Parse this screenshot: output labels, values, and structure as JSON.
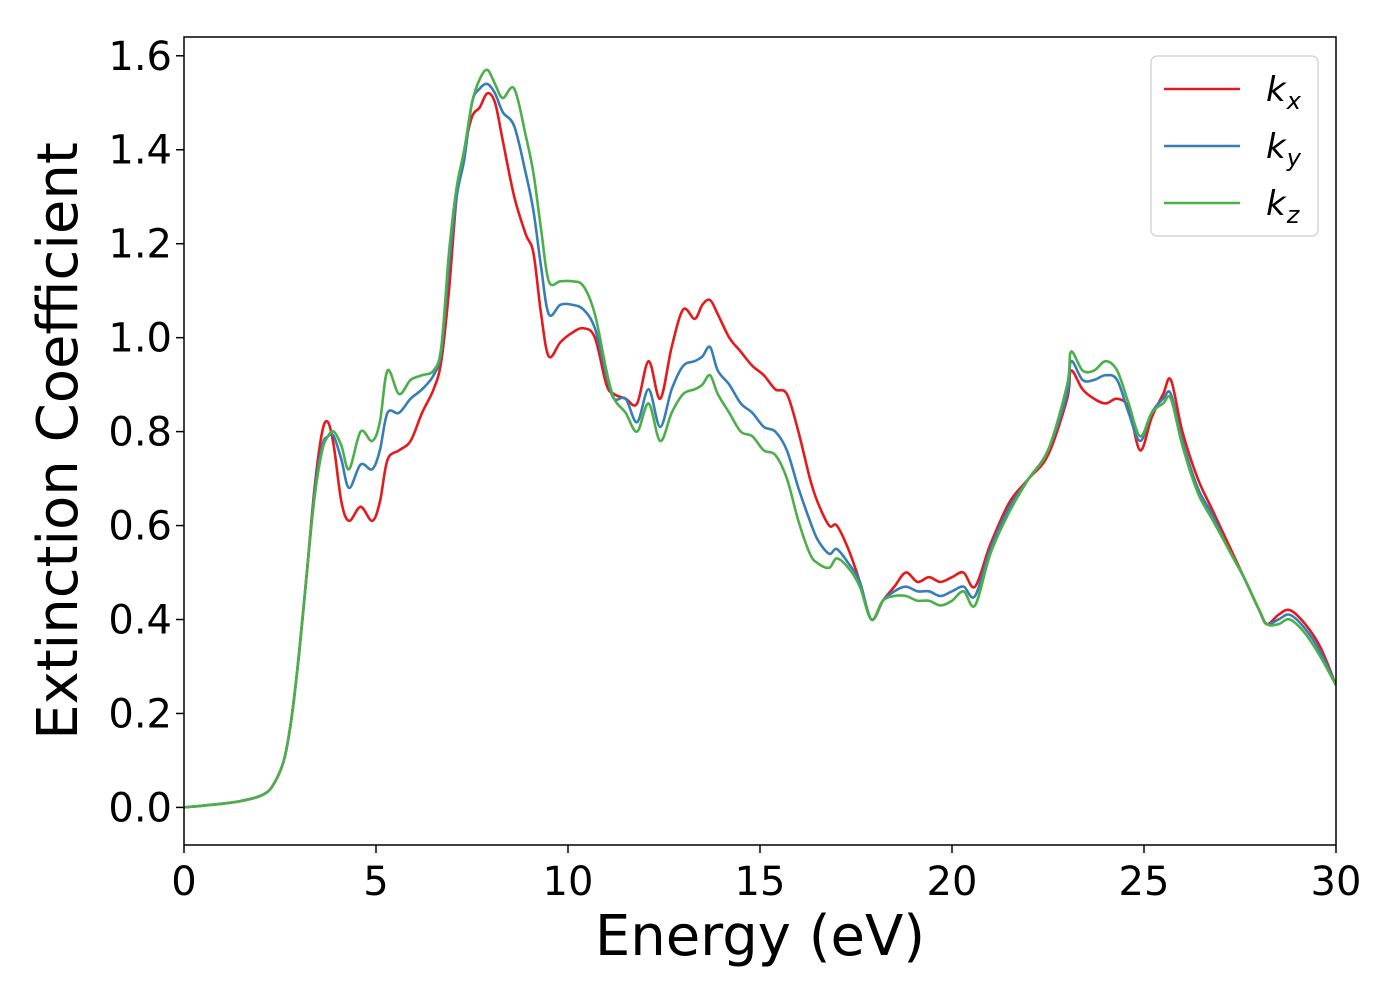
{
  "chart_data": {
    "type": "line",
    "title": "",
    "xlabel": "Energy (eV)",
    "ylabel": "Extinction Coefficient",
    "xlim": [
      0,
      30
    ],
    "ylim": [
      -0.08,
      1.64
    ],
    "xticks": [
      0,
      5,
      10,
      15,
      20,
      25,
      30
    ],
    "yticks": [
      0.0,
      0.2,
      0.4,
      0.6,
      0.8,
      1.0,
      1.2,
      1.4,
      1.6
    ],
    "x_tick_labels": [
      "0",
      "5",
      "10",
      "15",
      "20",
      "25",
      "30"
    ],
    "y_tick_labels": [
      "0.0",
      "0.2",
      "0.4",
      "0.6",
      "0.8",
      "1.0",
      "1.2",
      "1.4",
      "1.6"
    ],
    "grid": false,
    "legend_position": "top-right",
    "series": [
      {
        "name": "k_x",
        "legend_base": "k",
        "legend_sub": "x",
        "color": "#e41a1c",
        "x": [
          0,
          1,
          1.5,
          2,
          2.3,
          2.6,
          2.8,
          3.0,
          3.2,
          3.4,
          3.6,
          3.75,
          3.9,
          4.1,
          4.3,
          4.6,
          4.9,
          5.1,
          5.3,
          5.6,
          5.9,
          6.2,
          6.5,
          6.7,
          6.9,
          7.1,
          7.3,
          7.5,
          7.7,
          7.9,
          8.1,
          8.3,
          8.6,
          8.9,
          9.1,
          9.3,
          9.5,
          9.8,
          10.1,
          10.4,
          10.7,
          11.0,
          11.2,
          11.5,
          11.8,
          12.1,
          12.4,
          12.7,
          13.0,
          13.3,
          13.5,
          13.7,
          13.9,
          14.2,
          14.5,
          14.8,
          15.1,
          15.4,
          15.7,
          16.0,
          16.3,
          16.5,
          16.8,
          17.0,
          17.3,
          17.6,
          17.9,
          18.2,
          18.5,
          18.8,
          19.1,
          19.4,
          19.7,
          20.0,
          20.3,
          20.6,
          21.0,
          21.5,
          22.0,
          22.5,
          23.0,
          23.1,
          23.4,
          23.7,
          24.0,
          24.3,
          24.6,
          24.9,
          25.2,
          25.5,
          25.7,
          26.0,
          26.4,
          26.8,
          27.2,
          27.6,
          28.0,
          28.2,
          28.5,
          28.8,
          29.2,
          29.6,
          30.0
        ],
        "y": [
          0.0,
          0.008,
          0.014,
          0.025,
          0.045,
          0.1,
          0.19,
          0.33,
          0.5,
          0.68,
          0.8,
          0.82,
          0.77,
          0.65,
          0.61,
          0.64,
          0.61,
          0.65,
          0.74,
          0.76,
          0.78,
          0.84,
          0.89,
          0.95,
          1.1,
          1.3,
          1.4,
          1.47,
          1.49,
          1.52,
          1.5,
          1.42,
          1.3,
          1.22,
          1.18,
          1.05,
          0.96,
          0.99,
          1.01,
          1.02,
          1.0,
          0.9,
          0.88,
          0.87,
          0.86,
          0.95,
          0.87,
          0.98,
          1.06,
          1.04,
          1.07,
          1.08,
          1.05,
          1.0,
          0.97,
          0.94,
          0.92,
          0.89,
          0.88,
          0.8,
          0.7,
          0.65,
          0.6,
          0.6,
          0.55,
          0.48,
          0.4,
          0.44,
          0.47,
          0.5,
          0.48,
          0.49,
          0.48,
          0.49,
          0.5,
          0.47,
          0.56,
          0.65,
          0.7,
          0.75,
          0.87,
          0.93,
          0.89,
          0.87,
          0.86,
          0.87,
          0.85,
          0.76,
          0.83,
          0.88,
          0.91,
          0.8,
          0.7,
          0.63,
          0.56,
          0.49,
          0.42,
          0.39,
          0.41,
          0.42,
          0.39,
          0.34,
          0.26
        ]
      },
      {
        "name": "k_y",
        "legend_base": "k",
        "legend_sub": "y",
        "color": "#377eb8",
        "x": [
          0,
          1,
          1.5,
          2,
          2.3,
          2.6,
          2.8,
          3.0,
          3.2,
          3.4,
          3.6,
          3.75,
          3.9,
          4.1,
          4.3,
          4.6,
          4.9,
          5.1,
          5.3,
          5.6,
          5.9,
          6.2,
          6.5,
          6.7,
          6.9,
          7.1,
          7.3,
          7.5,
          7.7,
          7.9,
          8.1,
          8.3,
          8.6,
          8.9,
          9.1,
          9.3,
          9.5,
          9.8,
          10.1,
          10.4,
          10.7,
          11.0,
          11.2,
          11.5,
          11.8,
          12.1,
          12.4,
          12.7,
          13.0,
          13.3,
          13.5,
          13.7,
          13.9,
          14.2,
          14.5,
          14.8,
          15.1,
          15.4,
          15.7,
          16.0,
          16.3,
          16.5,
          16.8,
          17.0,
          17.3,
          17.6,
          17.9,
          18.2,
          18.5,
          18.8,
          19.1,
          19.4,
          19.7,
          20.0,
          20.3,
          20.6,
          21.0,
          21.5,
          22.0,
          22.5,
          23.0,
          23.1,
          23.4,
          23.7,
          24.0,
          24.3,
          24.6,
          24.9,
          25.2,
          25.5,
          25.7,
          26.0,
          26.4,
          26.8,
          27.2,
          27.6,
          28.0,
          28.2,
          28.5,
          28.8,
          29.2,
          29.6,
          30.0
        ],
        "y": [
          0.0,
          0.008,
          0.014,
          0.025,
          0.045,
          0.1,
          0.19,
          0.33,
          0.5,
          0.67,
          0.77,
          0.79,
          0.79,
          0.74,
          0.68,
          0.73,
          0.72,
          0.76,
          0.84,
          0.84,
          0.87,
          0.89,
          0.92,
          0.97,
          1.15,
          1.3,
          1.38,
          1.5,
          1.53,
          1.54,
          1.52,
          1.48,
          1.45,
          1.35,
          1.27,
          1.15,
          1.05,
          1.07,
          1.07,
          1.06,
          1.02,
          0.92,
          0.87,
          0.87,
          0.82,
          0.89,
          0.81,
          0.89,
          0.94,
          0.95,
          0.96,
          0.98,
          0.93,
          0.9,
          0.86,
          0.84,
          0.81,
          0.8,
          0.76,
          0.68,
          0.61,
          0.57,
          0.54,
          0.55,
          0.52,
          0.48,
          0.4,
          0.44,
          0.46,
          0.47,
          0.46,
          0.46,
          0.45,
          0.46,
          0.47,
          0.45,
          0.55,
          0.64,
          0.7,
          0.76,
          0.88,
          0.95,
          0.91,
          0.91,
          0.92,
          0.91,
          0.84,
          0.78,
          0.84,
          0.87,
          0.88,
          0.78,
          0.68,
          0.62,
          0.55,
          0.49,
          0.42,
          0.39,
          0.4,
          0.41,
          0.38,
          0.33,
          0.26
        ]
      },
      {
        "name": "k_z",
        "legend_base": "k",
        "legend_sub": "z",
        "color": "#4daf4a",
        "x": [
          0,
          1,
          1.5,
          2,
          2.3,
          2.6,
          2.8,
          3.0,
          3.2,
          3.4,
          3.6,
          3.75,
          3.9,
          4.1,
          4.3,
          4.6,
          4.9,
          5.1,
          5.3,
          5.6,
          5.9,
          6.2,
          6.5,
          6.7,
          6.9,
          7.1,
          7.3,
          7.5,
          7.7,
          7.9,
          8.1,
          8.3,
          8.6,
          8.9,
          9.1,
          9.3,
          9.5,
          9.8,
          10.1,
          10.4,
          10.7,
          11.0,
          11.2,
          11.5,
          11.8,
          12.1,
          12.4,
          12.7,
          13.0,
          13.3,
          13.5,
          13.7,
          13.9,
          14.2,
          14.5,
          14.8,
          15.1,
          15.4,
          15.7,
          16.0,
          16.3,
          16.5,
          16.8,
          17.0,
          17.3,
          17.6,
          17.9,
          18.2,
          18.5,
          18.8,
          19.1,
          19.4,
          19.7,
          20.0,
          20.3,
          20.6,
          21.0,
          21.5,
          22.0,
          22.5,
          23.0,
          23.1,
          23.4,
          23.7,
          24.0,
          24.3,
          24.6,
          24.9,
          25.2,
          25.5,
          25.7,
          26.0,
          26.4,
          26.8,
          27.2,
          27.6,
          28.0,
          28.2,
          28.5,
          28.8,
          29.2,
          29.6,
          30.0
        ],
        "y": [
          0.0,
          0.008,
          0.014,
          0.025,
          0.045,
          0.1,
          0.19,
          0.33,
          0.5,
          0.66,
          0.76,
          0.79,
          0.8,
          0.77,
          0.72,
          0.8,
          0.78,
          0.82,
          0.93,
          0.88,
          0.91,
          0.92,
          0.93,
          0.98,
          1.18,
          1.32,
          1.4,
          1.5,
          1.55,
          1.57,
          1.54,
          1.51,
          1.53,
          1.43,
          1.35,
          1.23,
          1.12,
          1.12,
          1.12,
          1.11,
          1.05,
          0.93,
          0.87,
          0.84,
          0.8,
          0.86,
          0.78,
          0.84,
          0.88,
          0.89,
          0.9,
          0.92,
          0.88,
          0.84,
          0.8,
          0.79,
          0.76,
          0.75,
          0.7,
          0.61,
          0.54,
          0.52,
          0.51,
          0.53,
          0.51,
          0.47,
          0.4,
          0.44,
          0.45,
          0.45,
          0.44,
          0.44,
          0.43,
          0.44,
          0.46,
          0.43,
          0.54,
          0.63,
          0.7,
          0.76,
          0.9,
          0.97,
          0.93,
          0.93,
          0.95,
          0.93,
          0.86,
          0.79,
          0.84,
          0.86,
          0.87,
          0.77,
          0.67,
          0.61,
          0.55,
          0.49,
          0.42,
          0.39,
          0.39,
          0.4,
          0.37,
          0.32,
          0.26
        ]
      }
    ]
  }
}
